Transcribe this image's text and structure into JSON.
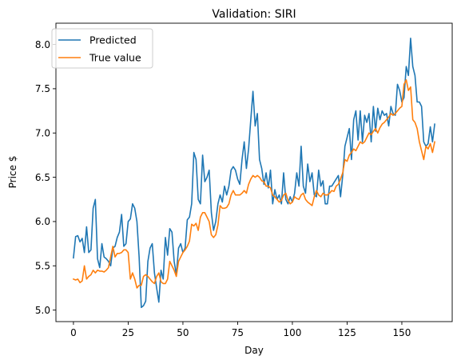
{
  "chart_data": {
    "type": "line",
    "title": "Validation: SIRI",
    "xlabel": "Day",
    "ylabel": "Price $",
    "xlim": [
      -8,
      173
    ],
    "ylim": [
      4.87,
      8.24
    ],
    "xticks": [
      0,
      25,
      50,
      75,
      100,
      125,
      150
    ],
    "yticks": [
      5.0,
      5.5,
      6.0,
      6.5,
      7.0,
      7.5,
      8.0
    ],
    "ytick_labels": [
      "5.0",
      "5.5",
      "6.0",
      "6.5",
      "7.0",
      "7.5",
      "8.0"
    ],
    "grid": false,
    "legend_position": "top-left",
    "x": [
      0,
      1,
      2,
      3,
      4,
      5,
      6,
      7,
      8,
      9,
      10,
      11,
      12,
      13,
      14,
      15,
      16,
      17,
      18,
      19,
      20,
      21,
      22,
      23,
      24,
      25,
      26,
      27,
      28,
      29,
      30,
      31,
      32,
      33,
      34,
      35,
      36,
      37,
      38,
      39,
      40,
      41,
      42,
      43,
      44,
      45,
      46,
      47,
      48,
      49,
      50,
      51,
      52,
      53,
      54,
      55,
      56,
      57,
      58,
      59,
      60,
      61,
      62,
      63,
      64,
      65,
      66,
      67,
      68,
      69,
      70,
      71,
      72,
      73,
      74,
      75,
      76,
      77,
      78,
      79,
      80,
      81,
      82,
      83,
      84,
      85,
      86,
      87,
      88,
      89,
      90,
      91,
      92,
      93,
      94,
      95,
      96,
      97,
      98,
      99,
      100,
      101,
      102,
      103,
      104,
      105,
      106,
      107,
      108,
      109,
      110,
      111,
      112,
      113,
      114,
      115,
      116,
      117,
      118,
      119,
      120,
      121,
      122,
      123,
      124,
      125,
      126,
      127,
      128,
      129,
      130,
      131,
      132,
      133,
      134,
      135,
      136,
      137,
      138,
      139,
      140,
      141,
      142,
      143,
      144,
      145,
      146,
      147,
      148,
      149,
      150,
      151,
      152,
      153,
      154,
      155,
      156,
      157,
      158,
      159,
      160,
      161,
      162,
      163,
      164,
      165
    ],
    "series": [
      {
        "name": "Predicted",
        "color": "#1f77b4",
        "values": [
          5.59,
          5.83,
          5.84,
          5.77,
          5.81,
          5.65,
          5.94,
          5.65,
          5.68,
          6.15,
          6.25,
          5.58,
          5.48,
          5.75,
          5.6,
          5.58,
          5.55,
          5.5,
          5.7,
          5.72,
          5.82,
          5.88,
          6.08,
          5.72,
          5.75,
          6.0,
          6.03,
          6.2,
          6.15,
          6.0,
          5.6,
          5.03,
          5.05,
          5.1,
          5.55,
          5.7,
          5.75,
          5.42,
          5.25,
          5.09,
          5.45,
          5.35,
          5.82,
          5.62,
          5.92,
          5.88,
          5.55,
          5.4,
          5.7,
          5.75,
          5.65,
          5.7,
          6.02,
          6.05,
          6.2,
          6.78,
          6.7,
          6.25,
          6.2,
          6.75,
          6.45,
          6.5,
          6.58,
          6.1,
          5.9,
          6.0,
          6.2,
          6.3,
          6.22,
          6.4,
          6.3,
          6.4,
          6.58,
          6.62,
          6.58,
          6.48,
          6.42,
          6.7,
          6.9,
          6.6,
          6.82,
          7.15,
          7.47,
          7.08,
          7.22,
          6.7,
          6.6,
          6.42,
          6.55,
          6.38,
          6.58,
          6.2,
          6.36,
          6.25,
          6.3,
          6.2,
          6.55,
          6.25,
          6.2,
          6.28,
          6.22,
          6.32,
          6.55,
          6.4,
          6.85,
          6.4,
          6.32,
          6.65,
          6.45,
          6.55,
          6.3,
          6.28,
          6.58,
          6.4,
          6.46,
          6.2,
          6.2,
          6.4,
          6.4,
          6.44,
          6.48,
          6.52,
          6.28,
          6.52,
          6.85,
          6.95,
          7.05,
          6.7,
          7.15,
          7.25,
          6.92,
          7.25,
          6.9,
          7.2,
          7.12,
          7.22,
          6.9,
          7.3,
          7.02,
          7.28,
          7.15,
          7.25,
          7.2,
          7.22,
          7.08,
          7.3,
          7.22,
          7.2,
          7.55,
          7.48,
          7.35,
          7.4,
          7.75,
          7.65,
          8.07,
          7.75,
          7.65,
          7.35,
          7.35,
          7.3,
          6.9,
          6.85,
          6.88,
          7.07,
          6.9,
          7.1
        ]
      },
      {
        "name": "True value",
        "color": "#ff7f0e",
        "values": [
          5.35,
          5.34,
          5.35,
          5.31,
          5.33,
          5.5,
          5.35,
          5.38,
          5.4,
          5.45,
          5.42,
          5.45,
          5.44,
          5.44,
          5.43,
          5.45,
          5.48,
          5.6,
          5.72,
          5.6,
          5.64,
          5.64,
          5.65,
          5.68,
          5.68,
          5.65,
          5.35,
          5.42,
          5.35,
          5.25,
          5.28,
          5.28,
          5.38,
          5.4,
          5.38,
          5.35,
          5.32,
          5.3,
          5.38,
          5.42,
          5.32,
          5.3,
          5.3,
          5.35,
          5.55,
          5.5,
          5.45,
          5.38,
          5.55,
          5.6,
          5.65,
          5.68,
          5.72,
          5.78,
          5.97,
          5.95,
          5.98,
          5.9,
          6.05,
          6.1,
          6.1,
          6.05,
          6.0,
          5.85,
          5.82,
          5.85,
          5.96,
          6.18,
          6.15,
          6.15,
          6.16,
          6.2,
          6.3,
          6.35,
          6.3,
          6.3,
          6.3,
          6.32,
          6.35,
          6.32,
          6.42,
          6.48,
          6.52,
          6.5,
          6.52,
          6.5,
          6.46,
          6.45,
          6.4,
          6.4,
          6.38,
          6.3,
          6.28,
          6.25,
          6.22,
          6.24,
          6.3,
          6.32,
          6.24,
          6.2,
          6.22,
          6.28,
          6.26,
          6.25,
          6.3,
          6.32,
          6.25,
          6.22,
          6.2,
          6.18,
          6.28,
          6.35,
          6.3,
          6.28,
          6.32,
          6.3,
          6.3,
          6.32,
          6.35,
          6.34,
          6.4,
          6.42,
          6.48,
          6.55,
          6.7,
          6.68,
          6.75,
          6.78,
          6.82,
          6.8,
          6.85,
          6.9,
          6.88,
          6.9,
          6.95,
          7.0,
          6.98,
          7.02,
          7.05,
          7.0,
          7.06,
          7.1,
          7.12,
          7.15,
          7.18,
          7.22,
          7.2,
          7.22,
          7.25,
          7.28,
          7.3,
          7.55,
          7.6,
          7.48,
          7.52,
          7.15,
          7.12,
          7.05,
          6.9,
          6.8,
          6.7,
          6.85,
          6.82,
          6.88,
          6.78,
          6.9
        ]
      }
    ]
  }
}
